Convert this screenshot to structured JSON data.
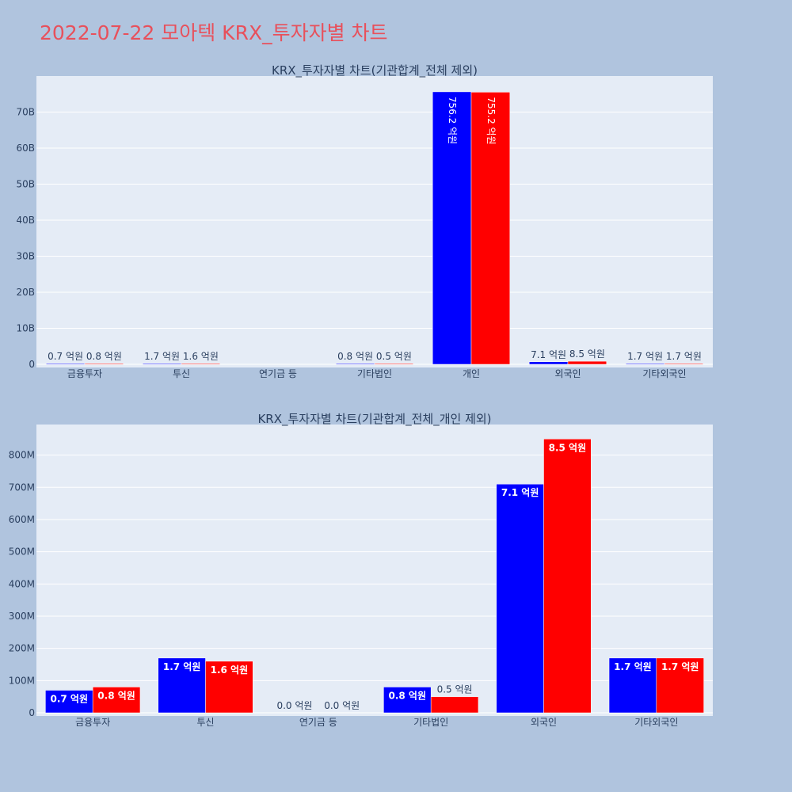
{
  "page_title": "2022-07-22 모아텍 KRX_투자자별 차트",
  "colors": {
    "series_a": "#0000ff",
    "series_b": "#ff0000",
    "plot_bg": "#e5ecf6",
    "page_bg": "#b0c4de",
    "title": "#e8505b"
  },
  "chart_data": [
    {
      "type": "bar",
      "title": "KRX_투자자별 차트(기관합계_전체 제외)",
      "categories": [
        "금융투자",
        "투신",
        "연기금 등",
        "기타법인",
        "개인",
        "외국인",
        "기타외국인"
      ],
      "series": [
        {
          "values": [
            70000000,
            170000000,
            0,
            80000000,
            75620000000,
            710000000,
            170000000
          ],
          "labels": [
            "0.7 억원",
            "1.7 억원",
            "",
            "0.8 억원",
            "756.2 억원",
            "7.1 억원",
            "1.7 억원"
          ]
        },
        {
          "values": [
            80000000,
            160000000,
            0,
            50000000,
            75520000000,
            850000000,
            170000000
          ],
          "labels": [
            "0.8 억원",
            "1.6 억원",
            "",
            "0.5 억원",
            "755.2 억원",
            "8.5 억원",
            "1.7 억원"
          ]
        }
      ],
      "yticks": [
        0,
        10000000000,
        20000000000,
        30000000000,
        40000000000,
        50000000000,
        60000000000,
        70000000000
      ],
      "ytick_labels": [
        "0",
        "10B",
        "20B",
        "30B",
        "40B",
        "50B",
        "60B",
        "70B"
      ],
      "ylim": [
        0,
        80000000000
      ],
      "grid": true
    },
    {
      "type": "bar",
      "title": "KRX_투자자별 차트(기관합계_전체_개인 제외)",
      "categories": [
        "금융투자",
        "투신",
        "연기금 등",
        "기타법인",
        "외국인",
        "기타외국인"
      ],
      "series": [
        {
          "values": [
            70000000,
            170000000,
            0,
            80000000,
            710000000,
            170000000
          ],
          "labels": [
            "0.7 억원",
            "1.7 억원",
            "0.0 억원",
            "0.8 억원",
            "7.1 억원",
            "1.7 억원"
          ]
        },
        {
          "values": [
            80000000,
            160000000,
            0,
            50000000,
            850000000,
            170000000
          ],
          "labels": [
            "0.8 억원",
            "1.6 억원",
            "0.0 억원",
            "0.5 억원",
            "8.5 억원",
            "1.7 억원"
          ]
        }
      ],
      "yticks": [
        0,
        100000000,
        200000000,
        300000000,
        400000000,
        500000000,
        600000000,
        700000000,
        800000000
      ],
      "ytick_labels": [
        "0",
        "100M",
        "200M",
        "300M",
        "400M",
        "500M",
        "600M",
        "700M",
        "800M"
      ],
      "ylim": [
        0,
        895000000
      ],
      "grid": true
    }
  ]
}
